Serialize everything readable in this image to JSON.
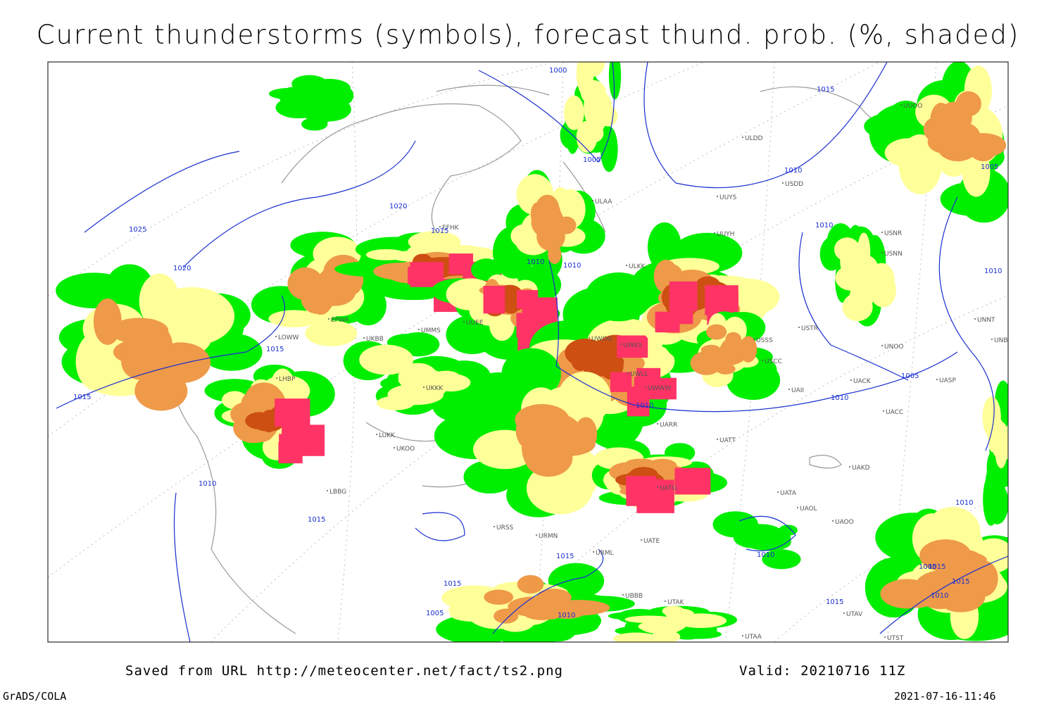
{
  "title": "Current thunderstorms (symbols), forecast thund. prob. (%, shaded)",
  "footer": {
    "source": "Saved from URL http://meteocenter.net/fact/ts2.png",
    "valid": "Valid: 20210716 11Z",
    "software": "GrADS/COLA",
    "timestamp": "2021-07-16-11:46"
  },
  "stations": [
    "ULAA",
    "ULDD",
    "UUYS",
    "USDD",
    "UUOO",
    "ULKK",
    "UUYH",
    "USSS",
    "USCC",
    "UWGG",
    "UWKS",
    "UWLL",
    "UWWW",
    "UARR",
    "UATT",
    "UAKD",
    "UATA",
    "UAOL",
    "UAOO",
    "UATE",
    "URML",
    "UBBB",
    "UTAK",
    "UTAA",
    "URSS",
    "URMN",
    "LUKK",
    "UKOO",
    "LBBG",
    "USNR",
    "USNN",
    "UNOO",
    "UNNT",
    "UNBB",
    "UASP",
    "UACC",
    "EFHK",
    "LHBP",
    "LOWW",
    "EPWA",
    "UKBB",
    "UKKK",
    "UMMS",
    "UUEE",
    "UATG",
    "UTAV",
    "UTST",
    "UAII",
    "UACK",
    "USTR"
  ],
  "isobars": [
    1000,
    1005,
    1015,
    1010,
    1020,
    1025,
    1015,
    1020,
    1010,
    1010,
    1015,
    1015,
    1010,
    1010,
    1010,
    1005,
    1005,
    1010,
    1005,
    1010,
    1010,
    1010,
    1015,
    1015,
    1015,
    1010,
    1015,
    1015,
    1010,
    1005,
    1015
  ]
}
